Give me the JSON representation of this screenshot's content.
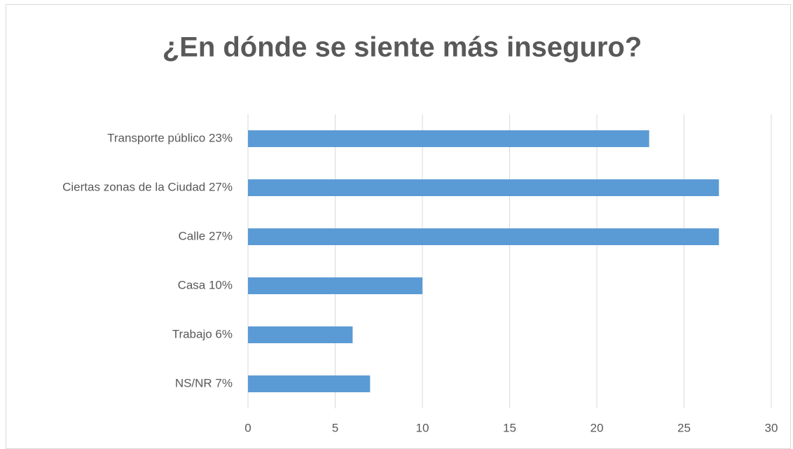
{
  "chart_data": {
    "type": "bar",
    "orientation": "horizontal",
    "title": "¿En dónde se siente más inseguro?",
    "categories": [
      "Transporte público 23%",
      "Ciertas zonas de la Ciudad 27%",
      "Calle 27%",
      "Casa 10%",
      "Trabajo 6%",
      "NS/NR 7%"
    ],
    "values": [
      23,
      27,
      27,
      10,
      6,
      7
    ],
    "color": "#5b9bd5",
    "xlim": [
      0,
      30
    ],
    "xticks": [
      0,
      5,
      10,
      15,
      20,
      25,
      30
    ],
    "grid": true
  }
}
